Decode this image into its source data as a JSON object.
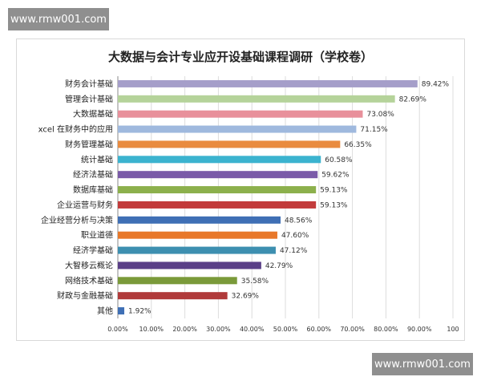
{
  "watermark": {
    "top": "www.rmw001.com",
    "bottom": "www.rmw001.com"
  },
  "chart_data": {
    "type": "bar",
    "orientation": "horizontal",
    "title": "大数据与会计专业应开设基础课程调研（学校卷）",
    "categories": [
      "财务会计基础",
      "管理会计基础",
      "大数据基础",
      "xcel 在财务中的应用",
      "财务管理基础",
      "统计基础",
      "经济法基础",
      "数据库基础",
      "企业运营与财务",
      "企业经营分析与决策",
      "职业道德",
      "经济学基础",
      "大智移云概论",
      "网络技术基础",
      "财政与金融基础",
      "其他"
    ],
    "values": [
      89.42,
      82.69,
      73.08,
      71.15,
      66.35,
      60.58,
      59.62,
      59.13,
      59.13,
      48.56,
      47.6,
      47.12,
      42.79,
      35.58,
      32.69,
      1.92
    ],
    "value_labels": [
      "89.42%",
      "82.69%",
      "73.08%",
      "71.15%",
      "66.35%",
      "60.58%",
      "59.62%",
      "59.13%",
      "59.13%",
      "48.56%",
      "47.60%",
      "47.12%",
      "42.79%",
      "35.58%",
      "32.69%",
      "1.92%"
    ],
    "colors": [
      "#a59ec9",
      "#b5d39a",
      "#e8909b",
      "#9fb9de",
      "#e98b3f",
      "#3bb3cf",
      "#7a5aa8",
      "#8cb04c",
      "#c23b3b",
      "#3f6fb5",
      "#e8782a",
      "#3d8fb0",
      "#5a3f87",
      "#7a9a3a",
      "#b03a3a",
      "#3f6fb5"
    ],
    "x_ticks": [
      "0.00%",
      "10.00%",
      "20.00%",
      "30.00%",
      "40.00%",
      "50.00%",
      "60.00%",
      "70.00%",
      "80.00%",
      "90.00%",
      "100"
    ],
    "xlim": [
      0,
      100
    ],
    "grid": true
  }
}
